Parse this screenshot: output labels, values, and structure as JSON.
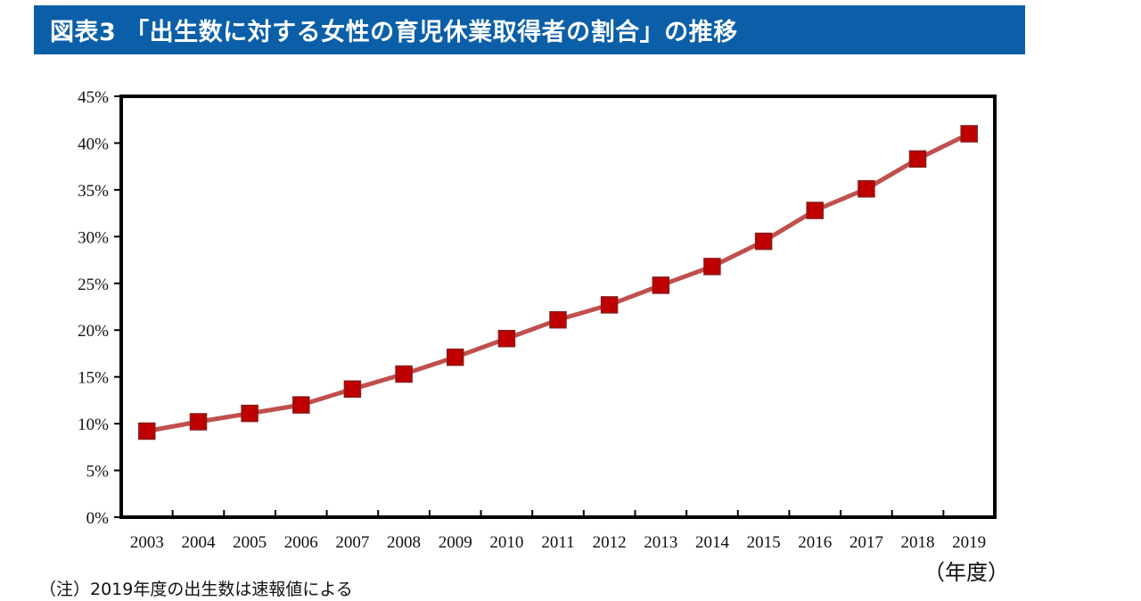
{
  "title": "図表3 「出生数に対する女性の育児休業取得者の割合」の推移",
  "x_unit_label": "（年度）",
  "note": "（注）2019年度の出生数は速報値による",
  "colors": {
    "title_bg": "#0a5fa8",
    "title_text": "#ffffff",
    "line": "#c0504d",
    "marker": "#c00000",
    "frame": "#000000"
  },
  "chart_data": {
    "type": "line",
    "categories": [
      "2003",
      "2004",
      "2005",
      "2006",
      "2007",
      "2008",
      "2009",
      "2010",
      "2011",
      "2012",
      "2013",
      "2014",
      "2015",
      "2016",
      "2017",
      "2018",
      "2019"
    ],
    "series": [
      {
        "values": [
          9.2,
          10.2,
          11.1,
          12.0,
          13.7,
          15.3,
          17.1,
          19.1,
          21.1,
          22.7,
          24.8,
          26.8,
          29.5,
          32.8,
          35.1,
          38.3,
          41.0
        ]
      }
    ],
    "y_ticks": [
      "0%",
      "5%",
      "10%",
      "15%",
      "20%",
      "25%",
      "30%",
      "35%",
      "40%",
      "45%"
    ],
    "ylim": [
      0,
      45
    ],
    "grid": false,
    "legend": "none",
    "marker": "square"
  }
}
